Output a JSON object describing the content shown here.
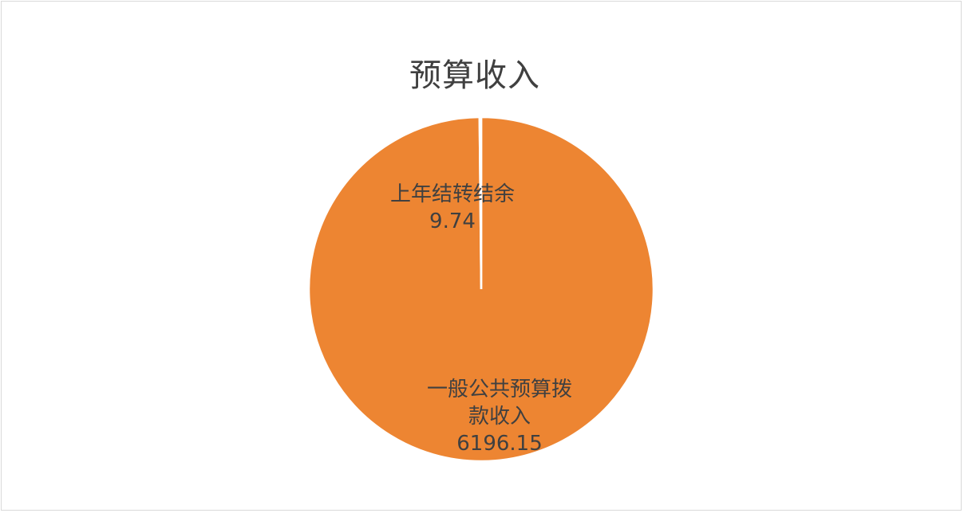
{
  "chart_data": {
    "type": "pie",
    "title": "预算收入",
    "slices": [
      {
        "label_lines": [
          "一般公共预算拨",
          "款收入"
        ],
        "value": 6196.15,
        "value_text": "6196.15",
        "color": "#ed8532"
      },
      {
        "label_lines": [
          "上年结转结余"
        ],
        "value": 9.74,
        "value_text": "9.74",
        "color": "#ed8532"
      }
    ],
    "slice_border_color": "#ffffff",
    "legend": "none"
  }
}
